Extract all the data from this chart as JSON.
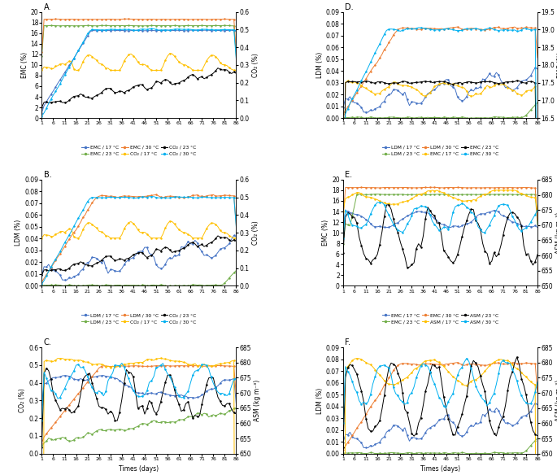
{
  "panels": [
    "A",
    "B",
    "C",
    "D",
    "E",
    "F"
  ],
  "n_days": 86,
  "colors": {
    "blue": "#4472C4",
    "green": "#70AD47",
    "orange": "#ED7D31",
    "yellow": "#FFC000",
    "black": "#000000",
    "light_blue": "#00B0F0"
  },
  "panel_A": {
    "title": "A.",
    "ylabel_left": "EMC (%)",
    "ylabel_right": "CO₂ (%)",
    "ylim_left": [
      0,
      20
    ],
    "ylim_right": [
      0.0,
      0.6
    ],
    "legend": [
      "EMC / 17 °C",
      "EMC / 23 °C",
      "EMC / 30 °C",
      "CO₂ / 17 °C",
      "CO₂ / 23 °C",
      "CO₂ / 30 °C"
    ]
  },
  "panel_B": {
    "title": "B.",
    "ylabel_left": "LDM (%)",
    "ylabel_right": "CO₂ (%)",
    "ylim_left": [
      0.0,
      0.09
    ],
    "ylim_right": [
      0.0,
      0.6
    ],
    "legend": [
      "LDM / 17 °C",
      "LDM / 23 °C",
      "LDM / 30 °C",
      "CO₂ / 17 °C",
      "CO₂ / 23 °C",
      "CO₂ / 30 °C"
    ]
  },
  "panel_C": {
    "title": "C.",
    "ylabel_left": "CO₂ (%)",
    "ylabel_right": "ASM (kg m⁻³)",
    "ylim_left": [
      0.0,
      0.6
    ],
    "ylim_right": [
      650,
      685
    ],
    "legend": [
      "CO₂ / 17 °C",
      "CO₂ / 23 °C",
      "CO₂ / 30 °C",
      "ASM / 17 °C",
      "ASM / 23 °C",
      "ASM / 30 °C"
    ]
  },
  "panel_D": {
    "title": "D.",
    "ylabel_left": "LDM (%)",
    "ylabel_right": "EMC (%)",
    "ylim_left": [
      0.0,
      0.09
    ],
    "ylim_right": [
      16.5,
      19.5
    ],
    "legend": [
      "LDM / 17 °C",
      "LDM / 23 °C",
      "LDM / 30 °C",
      "EMC / 17 °C",
      "EMC / 23 °C",
      "EMC / 30 °C"
    ]
  },
  "panel_E": {
    "title": "E.",
    "ylabel_left": "EMC (%)",
    "ylabel_right": "ASM (kg m⁻³)",
    "ylim_left": [
      0,
      20
    ],
    "ylim_right": [
      650,
      685
    ],
    "legend": [
      "EMC / 17 °C",
      "EMC / 23 °C",
      "EMC / 30 °C",
      "ASM / 17 °C",
      "ASM / 23 °C",
      "ASM / 30 °C"
    ]
  },
  "panel_F": {
    "title": "F.",
    "ylabel_left": "LDM (%)",
    "ylabel_right": "ASM (kg m⁻³)",
    "ylim_left": [
      0.0,
      0.09
    ],
    "ylim_right": [
      650,
      685
    ],
    "legend": [
      "LDM / 17 °C",
      "LDM / 23 °C",
      "LDM / 30 °C",
      "ASM / 17 °C",
      "ASM / 23 °C",
      "ASM / 30 °C"
    ]
  },
  "xlabel": "Times (days)",
  "xtick_labels": [
    "1",
    "6",
    "11",
    "16",
    "21",
    "26",
    "31",
    "36",
    "41",
    "46",
    "51",
    "56",
    "61",
    "66",
    "71",
    "76",
    "81",
    "86"
  ]
}
